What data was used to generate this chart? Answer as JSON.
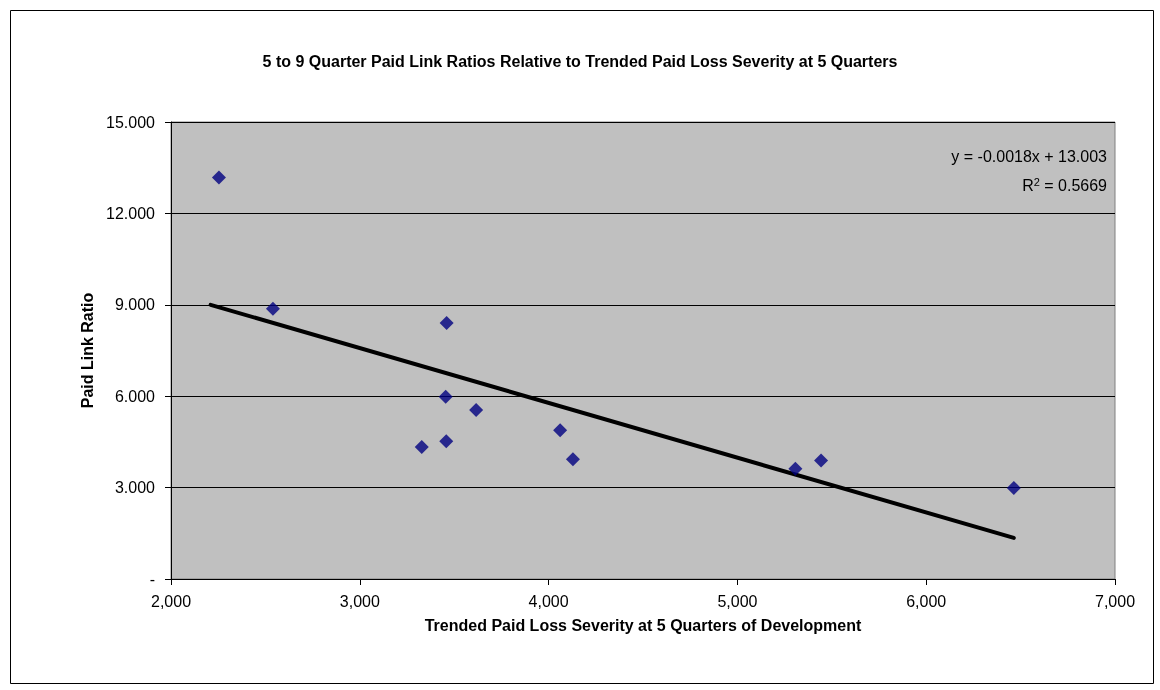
{
  "chart_data": {
    "type": "scatter",
    "title": "5 to 9 Quarter Paid Link Ratios Relative to Trended Paid Loss Severity at 5 Quarters",
    "xlabel": "Trended Paid Loss Severity at 5 Quarters of Development",
    "ylabel": "Paid Link Ratio",
    "marker": "diamond",
    "grid": "y",
    "xlim": [
      2000,
      7000
    ],
    "xticks": [
      {
        "value": 2000,
        "label": "2,000"
      },
      {
        "value": 3000,
        "label": "3,000"
      },
      {
        "value": 4000,
        "label": "4,000"
      },
      {
        "value": 5000,
        "label": "5,000"
      },
      {
        "value": 6000,
        "label": "6,000"
      },
      {
        "value": 7000,
        "label": "7,000"
      }
    ],
    "ylim": [
      0,
      15
    ],
    "yticks": [
      {
        "value": 0,
        "label": "-"
      },
      {
        "value": 3,
        "label": "3.000"
      },
      {
        "value": 6,
        "label": "6.000"
      },
      {
        "value": 9,
        "label": "9.000"
      },
      {
        "value": 12,
        "label": "12.000"
      },
      {
        "value": 15,
        "label": "15.000"
      }
    ],
    "series": [
      {
        "color": "#000080",
        "x": [
          2254,
          2540,
          3460,
          3455,
          3616,
          3328,
          3458,
          4061,
          4129,
          5307,
          5443,
          6464
        ],
        "values": [
          13.18,
          8.87,
          8.4,
          5.98,
          5.55,
          4.33,
          4.52,
          4.88,
          3.93,
          3.62,
          3.89,
          2.99
        ]
      },
      {
        "type": "line",
        "color": "#000000",
        "marker": "none",
        "x": [
          2210,
          6464
        ],
        "values": [
          9.0,
          1.35
        ]
      }
    ],
    "annotations": [
      "y = -0.0018x + 13.003",
      "R$^{2}$ = 0.5669"
    ]
  }
}
